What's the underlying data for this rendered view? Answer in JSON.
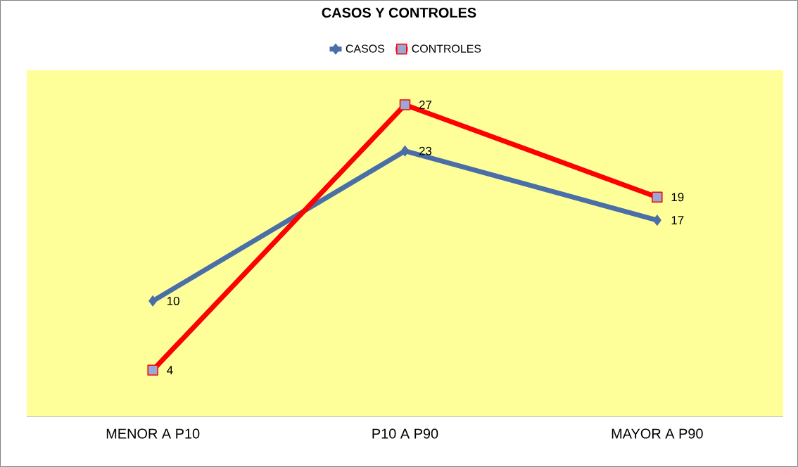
{
  "chart_data": {
    "type": "line",
    "title": "CASOS Y CONTROLES",
    "categories": [
      "MENOR A P10",
      "P10 A P90",
      "MAYOR A P90"
    ],
    "series": [
      {
        "name": "CASOS",
        "color": "#4a6fa8",
        "marker": "diamond",
        "values": [
          10,
          23,
          17
        ]
      },
      {
        "name": "CONTROLES",
        "color": "#ff0000",
        "marker": "square",
        "values": [
          4,
          27,
          19
        ]
      }
    ],
    "data_labels": true,
    "legend": "top"
  }
}
